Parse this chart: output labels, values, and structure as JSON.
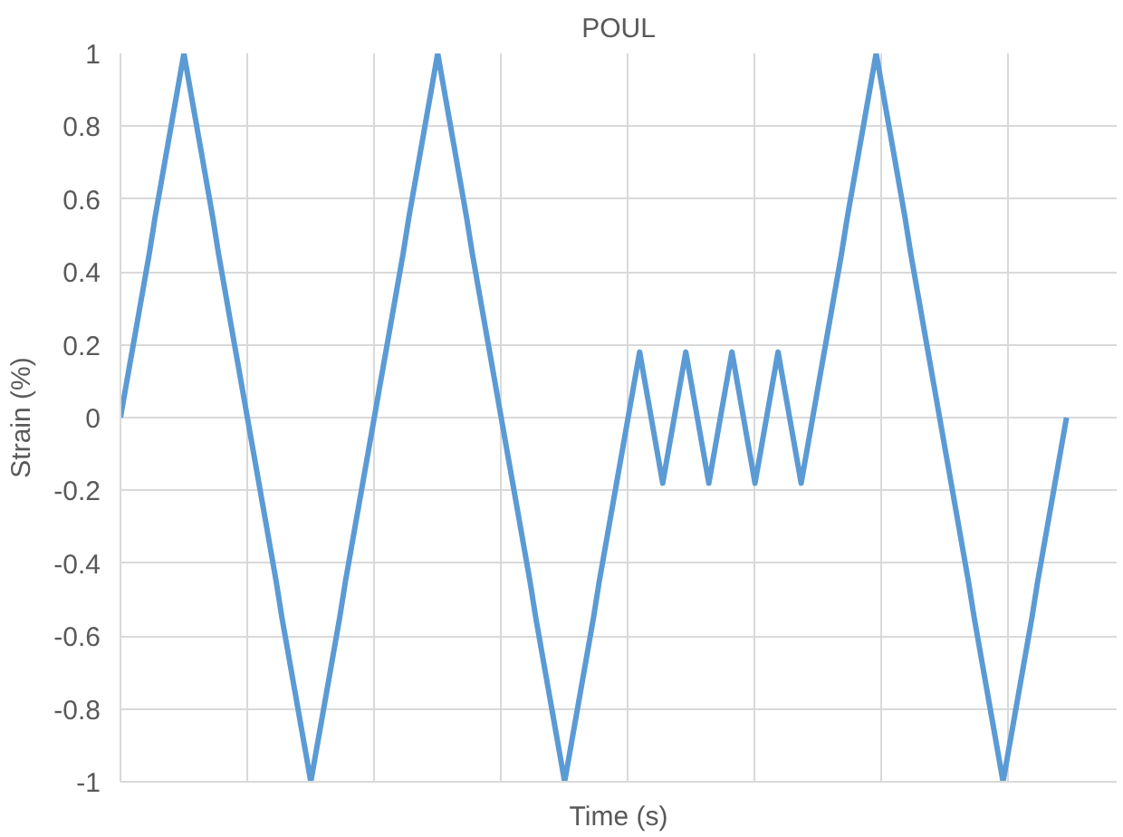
{
  "chart_data": {
    "type": "line",
    "title": "POUL",
    "xlabel": "Time (s)",
    "ylabel": "Strain (%)",
    "categories": [
      null,
      null,
      null,
      null,
      null,
      null,
      null,
      null,
      null,
      null,
      null,
      null,
      null,
      null,
      null,
      null,
      null,
      null,
      null,
      null,
      null,
      null,
      null,
      null,
      null,
      null,
      null,
      null,
      null,
      null,
      null,
      null,
      null,
      null,
      null,
      null,
      null,
      null,
      null,
      null,
      null,
      null,
      null,
      null,
      null,
      null,
      null,
      null,
      null,
      null,
      null,
      null,
      null,
      null,
      null,
      null,
      null,
      null,
      null,
      null,
      null,
      null,
      null,
      null,
      null,
      null,
      null,
      null,
      null,
      null,
      null,
      null,
      null,
      null,
      null,
      null,
      null,
      null,
      null,
      null,
      null,
      null,
      null,
      null,
      null,
      null,
      null,
      null,
      null,
      null,
      null,
      null,
      null,
      null,
      null,
      null,
      null,
      null,
      null,
      null,
      null,
      null,
      null,
      null,
      null,
      null,
      null,
      null,
      null,
      null,
      null,
      null,
      null,
      null,
      null,
      null,
      null,
      null,
      null,
      null,
      null,
      null,
      null,
      null,
      null,
      null,
      null,
      null,
      null,
      null,
      null,
      null,
      null,
      null,
      null,
      null,
      null,
      null,
      null,
      null,
      null,
      null,
      null,
      null,
      null,
      null,
      null,
      null,
      null,
      null,
      null,
      null,
      null,
      null,
      null,
      null,
      null,
      null,
      null,
      null,
      null,
      null,
      null,
      null,
      null
    ],
    "series": [
      {
        "color": "#5b9bd5",
        "values": [
          0,
          0.09,
          0.18,
          0.27,
          0.36,
          0.45,
          0.55,
          0.64,
          0.73,
          0.82,
          0.91,
          1,
          0.91,
          0.82,
          0.73,
          0.64,
          0.55,
          0.45,
          0.36,
          0.27,
          0.18,
          0.09,
          0,
          -0.09,
          -0.18,
          -0.27,
          -0.36,
          -0.45,
          -0.55,
          -0.64,
          -0.73,
          -0.82,
          -0.91,
          -1,
          -0.91,
          -0.82,
          -0.73,
          -0.64,
          -0.55,
          -0.45,
          -0.36,
          -0.27,
          -0.18,
          -0.09,
          0,
          0.09,
          0.18,
          0.27,
          0.36,
          0.45,
          0.55,
          0.64,
          0.73,
          0.82,
          0.91,
          1,
          0.91,
          0.82,
          0.73,
          0.64,
          0.55,
          0.45,
          0.36,
          0.27,
          0.18,
          0.09,
          0,
          -0.09,
          -0.18,
          -0.27,
          -0.36,
          -0.45,
          -0.55,
          -0.64,
          -0.73,
          -0.82,
          -0.91,
          -1,
          -0.91,
          -0.82,
          -0.73,
          -0.64,
          -0.55,
          -0.45,
          -0.36,
          -0.27,
          -0.18,
          -0.09,
          0,
          0.09,
          0.18,
          0.09,
          0,
          -0.09,
          -0.18,
          -0.09,
          0,
          0.09,
          0.18,
          0.09,
          0,
          -0.09,
          -0.18,
          -0.09,
          0,
          0.09,
          0.18,
          0.09,
          0,
          -0.09,
          -0.18,
          -0.09,
          0,
          0.09,
          0.18,
          0.09,
          0,
          -0.09,
          -0.18,
          -0.09,
          0,
          0.09,
          0.18,
          0.27,
          0.36,
          0.45,
          0.55,
          0.64,
          0.73,
          0.82,
          0.91,
          1,
          0.91,
          0.82,
          0.73,
          0.64,
          0.55,
          0.45,
          0.36,
          0.27,
          0.18,
          0.09,
          0,
          -0.09,
          -0.18,
          -0.27,
          -0.36,
          -0.45,
          -0.55,
          -0.64,
          -0.73,
          -0.82,
          -0.91,
          -1,
          -0.91,
          -0.82,
          -0.73,
          -0.64,
          -0.55,
          -0.45,
          -0.36,
          -0.27,
          -0.18,
          -0.09,
          0
        ]
      }
    ],
    "ylim": [
      -1,
      1
    ],
    "yticks": [
      -1,
      -0.8,
      -0.6,
      -0.4,
      -0.2,
      0,
      0.2,
      0.4,
      0.6,
      0.8,
      1
    ],
    "tick_labels": "y",
    "grid": true,
    "line_style": "solid"
  }
}
